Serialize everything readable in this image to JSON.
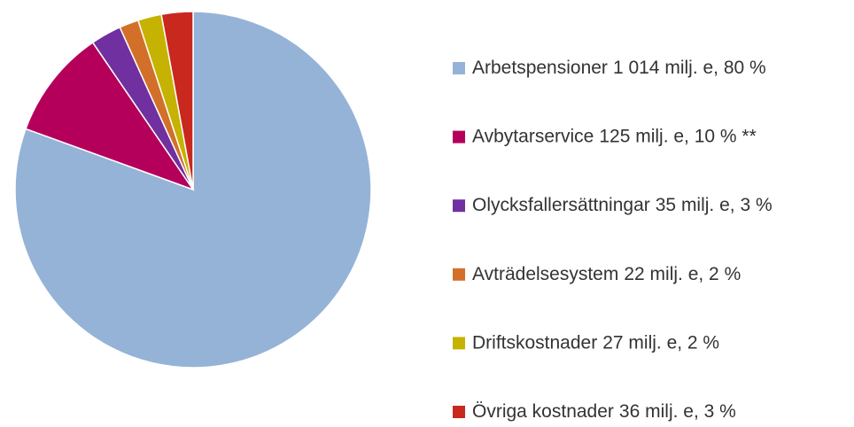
{
  "chart_data": {
    "type": "pie",
    "categories": [
      "Arbetspensioner",
      "Avbytarservice",
      "Olycksfallersättningar",
      "Avträdelsesystem",
      "Driftskostnader",
      "Övriga kostnader"
    ],
    "values": [
      1014,
      125,
      35,
      22,
      27,
      36
    ],
    "value_labels": [
      "1 014 milj. e, 80 %",
      "125 milj. e, 10 % **",
      "35 milj. e, 3 %",
      "22 milj. e, 2 %",
      "27 milj. e, 2 %",
      "36 milj. e, 3 %"
    ],
    "colors": [
      "#95b3d7",
      "#b5005b",
      "#7030a0",
      "#d2702a",
      "#c6b200",
      "#c8281e"
    ],
    "legend": "right"
  }
}
